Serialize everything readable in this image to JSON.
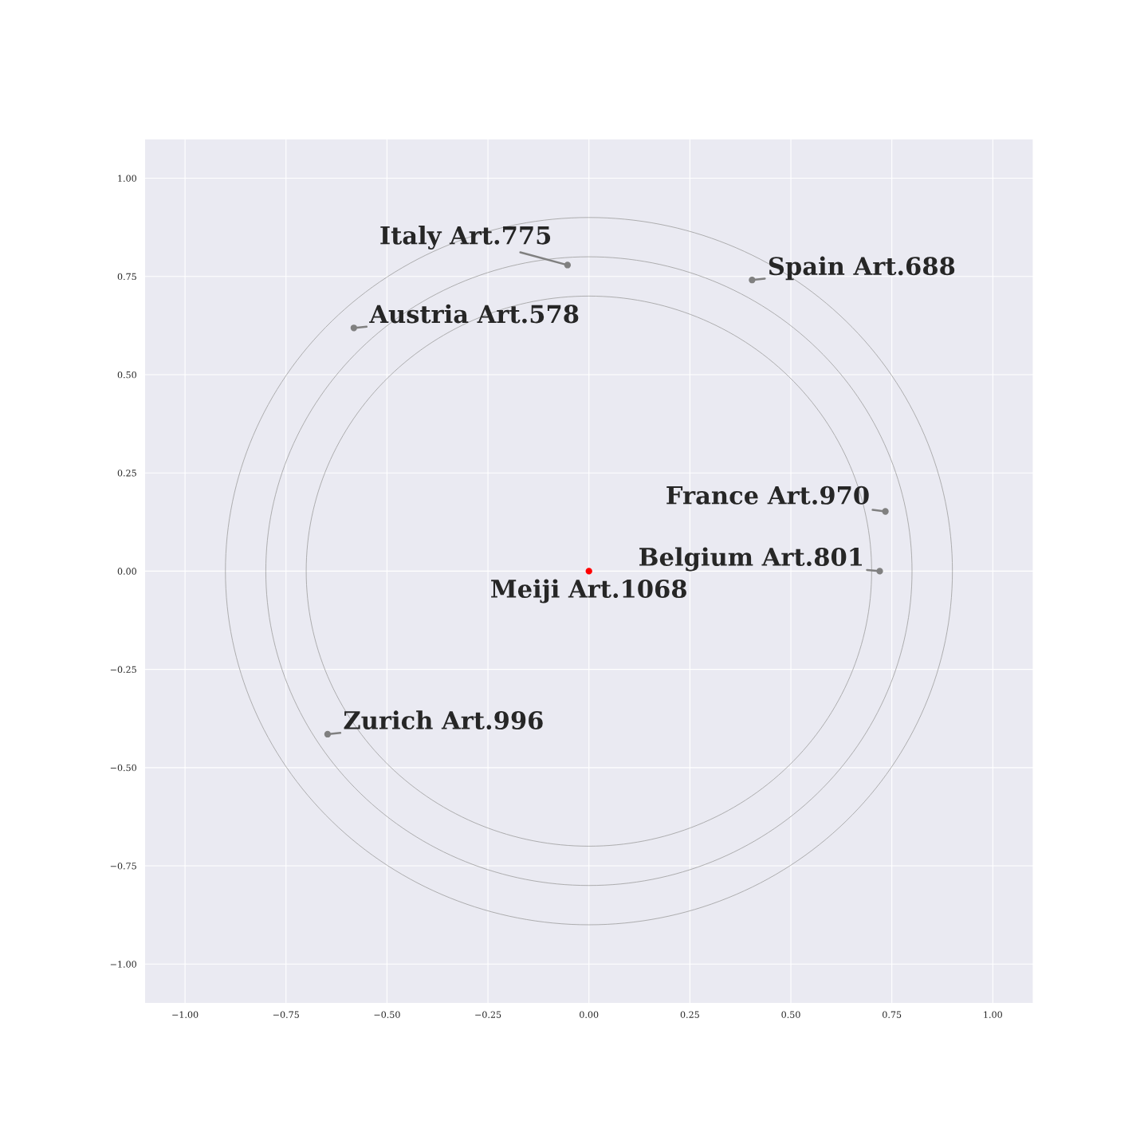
{
  "chart_data": {
    "type": "scatter",
    "xlim": [
      -1.1,
      1.1
    ],
    "ylim": [
      -1.1,
      1.1
    ],
    "xticks": [
      {
        "value": -1,
        "label": "−1.00"
      },
      {
        "value": -0.75,
        "label": "−0.75"
      },
      {
        "value": -0.5,
        "label": "−0.50"
      },
      {
        "value": -0.25,
        "label": "−0.25"
      },
      {
        "value": 0,
        "label": "0.00"
      },
      {
        "value": 0.25,
        "label": "0.25"
      },
      {
        "value": 0.5,
        "label": "0.50"
      },
      {
        "value": 0.75,
        "label": "0.75"
      },
      {
        "value": 1,
        "label": "1.00"
      }
    ],
    "yticks": [
      {
        "value": -1,
        "label": "−1.00"
      },
      {
        "value": -0.75,
        "label": "−0.75"
      },
      {
        "value": -0.5,
        "label": "−0.50"
      },
      {
        "value": -0.25,
        "label": "−0.25"
      },
      {
        "value": 0,
        "label": "0.00"
      },
      {
        "value": 0.25,
        "label": "0.25"
      },
      {
        "value": 0.5,
        "label": "0.50"
      },
      {
        "value": 0.75,
        "label": "0.75"
      },
      {
        "value": 1,
        "label": "1.00"
      }
    ],
    "grid": true,
    "marker": "circle",
    "series": [
      {
        "x": [
          0,
          -0.053,
          0.404,
          -0.582,
          0.734,
          0.72,
          -0.647
        ],
        "values": [
          0,
          0.779,
          0.741,
          0.619,
          0.152,
          0,
          -0.415
        ],
        "colors": [
          "#ff0000",
          "#808080",
          "#808080",
          "#808080",
          "#808080",
          "#808080",
          "#808080"
        ]
      }
    ],
    "annotations": [
      {
        "text": "Meiji Art.1068",
        "x": 0,
        "y": 0
      },
      {
        "text": "Italy Art.775",
        "x": -0.053,
        "y": 0.779
      },
      {
        "text": "Spain Art.688",
        "x": 0.404,
        "y": 0.741
      },
      {
        "text": "Austria Art.578",
        "x": -0.582,
        "y": 0.619
      },
      {
        "text": "France Art.970",
        "x": 0.734,
        "y": 0.152
      },
      {
        "text": "Belgium Art.801",
        "x": 0.72,
        "y": 0
      },
      {
        "text": "Zurich Art.996",
        "x": -0.647,
        "y": -0.415
      }
    ]
  }
}
